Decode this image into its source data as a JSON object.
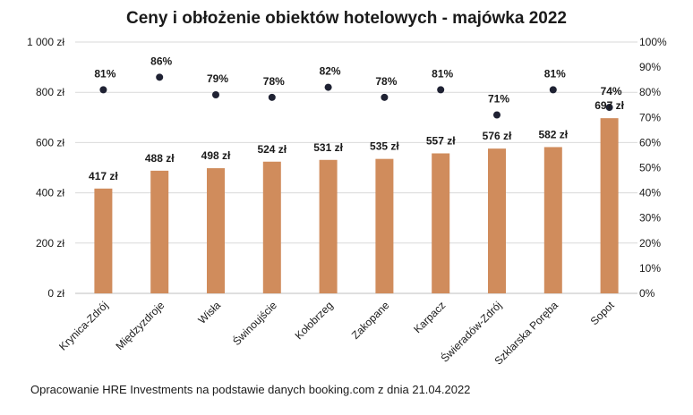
{
  "chart_data": {
    "type": "bar",
    "title": "Ceny i obłożenie obiektów hotelowych - majówka 2022",
    "categories": [
      "Krynica-Zdrój",
      "Międzyzdroje",
      "Wisła",
      "Świnoujście",
      "Kołobrzeg",
      "Zakopane",
      "Karpacz",
      "Świeradów-Zdrój",
      "Szklarska Poręba",
      "Sopot"
    ],
    "series": [
      {
        "type": "bar",
        "axis": "left",
        "values": [
          417,
          488,
          498,
          524,
          531,
          535,
          557,
          576,
          582,
          697
        ],
        "labels": [
          "417 zł",
          "488 zł",
          "498 zł",
          "524 zł",
          "531 zł",
          "535 zł",
          "557 zł",
          "576 zł",
          "582 zł",
          "697 zł"
        ],
        "color": "#d08c5c"
      },
      {
        "type": "scatter",
        "axis": "right",
        "values": [
          81,
          86,
          79,
          78,
          82,
          78,
          81,
          71,
          81,
          74
        ],
        "labels": [
          "81%",
          "86%",
          "79%",
          "78%",
          "82%",
          "78%",
          "81%",
          "71%",
          "81%",
          "74%"
        ],
        "color": "#1f2233"
      }
    ],
    "y_left": {
      "range": [
        0,
        1000
      ],
      "ticks": [
        0,
        200,
        400,
        600,
        800,
        1000
      ],
      "tick_labels": [
        "0 zł",
        "200 zł",
        "400 zł",
        "600 zł",
        "800 zł",
        "1 000 zł"
      ]
    },
    "y_right": {
      "range": [
        0,
        100
      ],
      "ticks": [
        0,
        10,
        20,
        30,
        40,
        50,
        60,
        70,
        80,
        90,
        100
      ],
      "tick_labels": [
        "0%",
        "10%",
        "20%",
        "30%",
        "40%",
        "50%",
        "60%",
        "70%",
        "80%",
        "90%",
        "100%"
      ]
    },
    "grid": true,
    "legend": "none"
  },
  "footer": {
    "source": "Opracowanie HRE Investments na podstawie danych booking.com z dnia 21.04.2022"
  }
}
